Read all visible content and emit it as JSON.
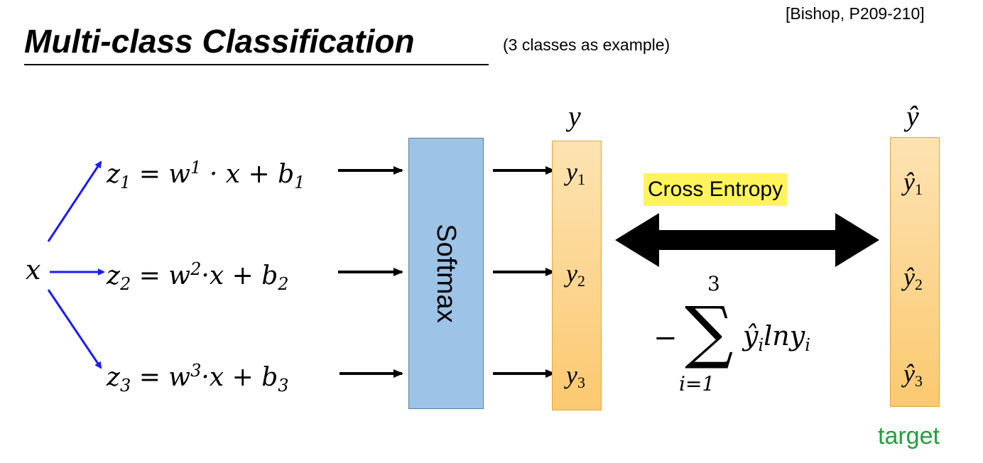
{
  "title": "Multi-class Classification",
  "subtitle": "(3 classes as example)",
  "citation": "[Bishop, P209-210]",
  "input_label": "x",
  "equations": [
    {
      "z": "z",
      "z_sub": "1",
      "w_sup": "1",
      "b_sub": "1",
      "expr_mid": " = w",
      "expr_tail": " · x + b"
    },
    {
      "z": "z",
      "z_sub": "2",
      "w_sup": "2",
      "b_sub": "2",
      "expr_mid": " = w",
      "expr_tail": "·x + b"
    },
    {
      "z": "z",
      "z_sub": "3",
      "w_sup": "3",
      "b_sub": "3",
      "expr_mid": " = w",
      "expr_tail": "·x + b"
    }
  ],
  "softmax_label": "Softmax",
  "output_vector": {
    "label": "y",
    "items": [
      {
        "base": "y",
        "sub": "1"
      },
      {
        "base": "y",
        "sub": "2"
      },
      {
        "base": "y",
        "sub": "3"
      }
    ]
  },
  "target_vector": {
    "label": "ŷ",
    "items": [
      {
        "base": "ŷ",
        "sub": "1"
      },
      {
        "base": "ŷ",
        "sub": "2"
      },
      {
        "base": "ŷ",
        "sub": "3"
      }
    ]
  },
  "cross_entropy_label": "Cross Entropy",
  "formula": {
    "minus": "−",
    "sigma": "∑",
    "upper": "3",
    "lower": "i=1",
    "term": "ŷ",
    "term_sub": "i",
    "ln": "lny",
    "ln_sub": "i"
  },
  "target_label": "target",
  "colors": {
    "blue_arrow": "#1a1aff",
    "softmax_fill": "#9dc3e6",
    "vector_fill": "#fbc970",
    "highlight": "#fff45c",
    "target_text": "#22a03a"
  }
}
